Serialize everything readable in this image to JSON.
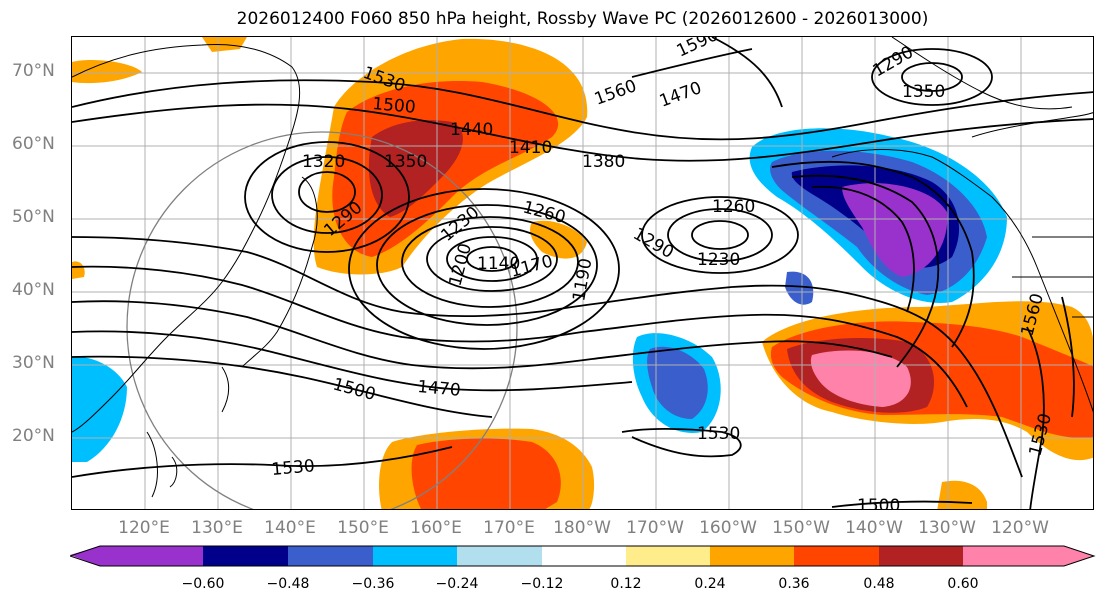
{
  "title": "2026012400 F060 850 hPa height, Rossby Wave PC (2026012600 - 2026013000)",
  "lat_labels": [
    "70°N",
    "60°N",
    "50°N",
    "40°N",
    "30°N",
    "20°N"
  ],
  "lon_labels": [
    "120°E",
    "130°E",
    "140°E",
    "150°E",
    "160°E",
    "170°E",
    "180°W",
    "170°W",
    "160°W",
    "150°W",
    "140°W",
    "130°W",
    "120°W"
  ],
  "colorbar": {
    "ticks": [
      "−0.60",
      "−0.48",
      "−0.36",
      "−0.24",
      "−0.12",
      "0.12",
      "0.24",
      "0.36",
      "0.48",
      "0.60"
    ],
    "colors": [
      "#9932cc",
      "#00008b",
      "#3a5fcd",
      "#00bfff",
      "#b2dfee",
      "#ffffff",
      "#ffec8b",
      "#ffa500",
      "#ff4500",
      "#b22222",
      "#ff82ab"
    ]
  },
  "contour_labels": [
    "1590",
    "1530",
    "1500",
    "1560",
    "1470",
    "1440",
    "1410",
    "1380",
    "1350",
    "1320",
    "1290",
    "1230",
    "1200",
    "1140",
    "1170",
    "1260",
    "1290",
    "1230",
    "1260",
    "1190",
    "1290",
    "1350",
    "1500",
    "1470",
    "1530",
    "1530",
    "1560",
    "1530",
    "1500"
  ],
  "colors": {
    "purple": "#9932cc",
    "navy": "#00008b",
    "blue": "#3a5fcd",
    "cyan": "#00bfff",
    "lightblue": "#b2dfee",
    "yellow": "#ffec8b",
    "orange": "#ffa500",
    "redorange": "#ff4500",
    "darkred": "#b22222",
    "pink": "#ff82ab"
  }
}
